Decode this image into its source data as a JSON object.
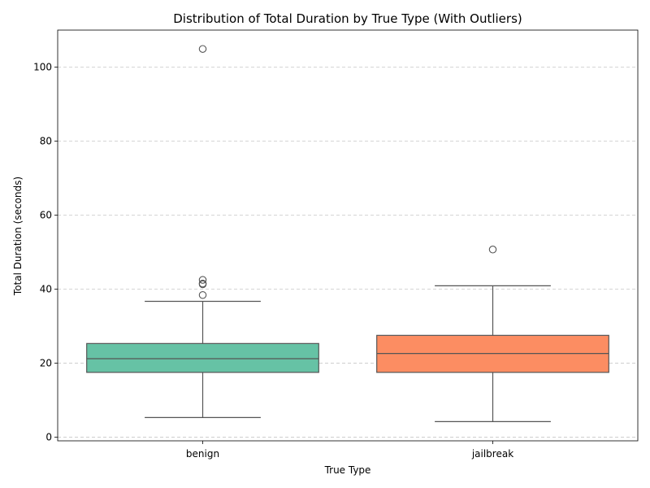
{
  "chart_data": {
    "type": "box",
    "title": "Distribution of Total Duration by True Type (With Outliers)",
    "xlabel": "True Type",
    "ylabel": "Total Duration (seconds)",
    "ylim": [
      -1,
      110
    ],
    "yticks": [
      0,
      20,
      40,
      60,
      80,
      100
    ],
    "grid": "y-dashed",
    "categories": [
      "benign",
      "jailbreak"
    ],
    "boxes": [
      {
        "category": "benign",
        "color": "#66c2a5",
        "whisker_low": 5.3,
        "q1": 17.5,
        "median": 21.2,
        "q3": 25.3,
        "whisker_high": 36.7,
        "outliers": [
          38.4,
          41.3,
          41.5,
          42.5,
          104.9
        ]
      },
      {
        "category": "jailbreak",
        "color": "#fc8d62",
        "whisker_low": 4.2,
        "q1": 17.5,
        "median": 22.6,
        "q3": 27.5,
        "whisker_high": 40.9,
        "outliers": [
          50.7
        ]
      }
    ]
  }
}
